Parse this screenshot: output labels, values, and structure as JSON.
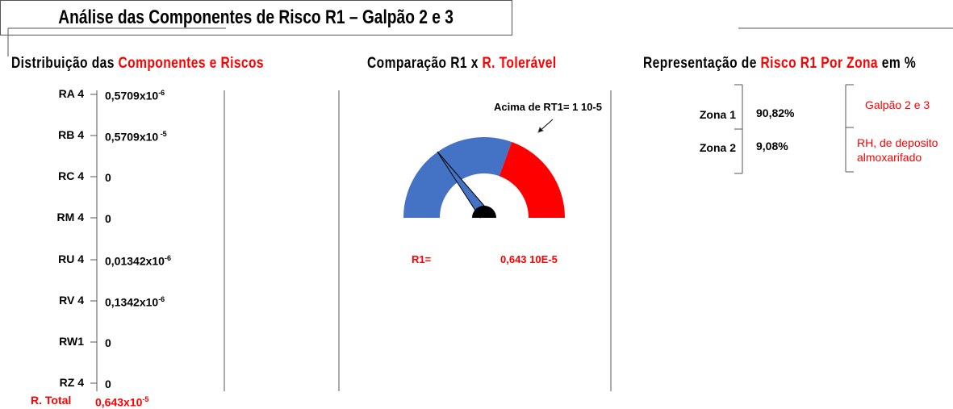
{
  "header": {
    "title": "Análise das Componentes de Risco R1 – Galpão 2 e 3"
  },
  "sections": [
    {
      "title_parts": [
        "Distribuição das ",
        "Componentes e Riscos"
      ]
    },
    {
      "title_parts": [
        "Comparação R1 x ",
        "R. Tolerável"
      ]
    },
    {
      "title_parts": [
        "Representação de ",
        "Risco R1 Por Zona",
        " em %"
      ]
    }
  ],
  "components": [
    {
      "label": "RA 4",
      "value": "0,5709x10",
      "exponent": "-6"
    },
    {
      "label": "RB 4",
      "value": "0,5709x10",
      "exponent": " -5"
    },
    {
      "label": "RC 4",
      "value": "0"
    },
    {
      "label": "RM 4",
      "value": "0"
    },
    {
      "label": "RU  4",
      "value": "0,01342x10",
      "exponent": "-6"
    },
    {
      "label": "RV 4",
      "value": "0,1342x10",
      "exponent": "-6"
    },
    {
      "label": "RW1",
      "value": "0"
    },
    {
      "label": "RZ 4",
      "value": "0"
    }
  ],
  "total": {
    "label": "R. Total",
    "value": "0,643x10",
    "exponent": "-5"
  },
  "gauge": {
    "annotation": "Acima de RT1= 1 10-5",
    "result_label": "R1=",
    "result_value": "0,643 10E-5"
  },
  "zones": [
    {
      "label": "Zona 1",
      "value": "90,82%"
    },
    {
      "label": "Zona 2",
      "value": "9,08%"
    }
  ],
  "notes": [
    "Galpão 2 e 3",
    "RH, de deposito almoxarifado"
  ]
}
